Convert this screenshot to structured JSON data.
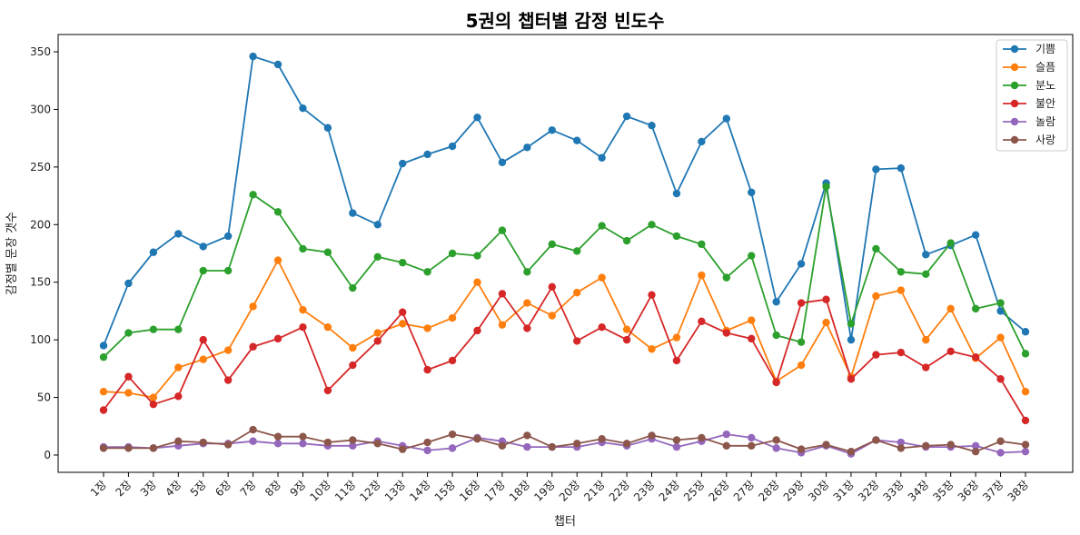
{
  "chart_data": {
    "type": "line",
    "title": "5권의 챕터별 감정 빈도수",
    "xlabel": "챕터",
    "ylabel": "감정별 문장 갯수",
    "ylim": [
      -15,
      365
    ],
    "yticks": [
      0,
      50,
      100,
      150,
      200,
      250,
      300,
      350
    ],
    "grid": false,
    "legend_position": "top-right",
    "categories": [
      "1장",
      "2장",
      "3장",
      "4장",
      "5장",
      "6장",
      "7장",
      "8장",
      "9장",
      "10장",
      "11장",
      "12장",
      "13장",
      "14장",
      "15장",
      "16장",
      "17장",
      "18장",
      "19장",
      "20장",
      "21장",
      "22장",
      "23장",
      "24장",
      "25장",
      "26장",
      "27장",
      "28장",
      "29장",
      "30장",
      "31장",
      "32장",
      "33장",
      "34장",
      "35장",
      "36장",
      "37장",
      "38장"
    ],
    "series": [
      {
        "name": "기쁨",
        "color": "#1f77b4",
        "values": [
          95,
          149,
          176,
          192,
          181,
          190,
          346,
          339,
          301,
          284,
          210,
          200,
          253,
          261,
          268,
          293,
          254,
          267,
          282,
          273,
          258,
          294,
          286,
          227,
          272,
          292,
          228,
          133,
          166,
          236,
          100,
          248,
          249,
          174,
          182,
          191,
          125,
          107
        ]
      },
      {
        "name": "슬픔",
        "color": "#ff7f0e",
        "values": [
          55,
          54,
          50,
          76,
          83,
          91,
          129,
          169,
          126,
          111,
          93,
          106,
          114,
          110,
          119,
          150,
          113,
          132,
          121,
          141,
          154,
          109,
          92,
          102,
          156,
          108,
          117,
          64,
          78,
          115,
          68,
          138,
          143,
          100,
          127,
          84,
          102,
          55
        ]
      },
      {
        "name": "분노",
        "color": "#2ca02c",
        "values": [
          85,
          106,
          109,
          109,
          160,
          160,
          226,
          211,
          179,
          176,
          145,
          172,
          167,
          159,
          175,
          173,
          195,
          159,
          183,
          177,
          199,
          186,
          200,
          190,
          183,
          154,
          173,
          104,
          98,
          233,
          114,
          179,
          159,
          157,
          184,
          127,
          132,
          88
        ]
      },
      {
        "name": "불안",
        "color": "#d62728",
        "values": [
          39,
          68,
          44,
          51,
          100,
          65,
          94,
          101,
          111,
          56,
          78,
          99,
          124,
          74,
          82,
          108,
          140,
          110,
          146,
          99,
          111,
          100,
          139,
          82,
          116,
          106,
          101,
          63,
          132,
          135,
          66,
          87,
          89,
          76,
          90,
          85,
          66,
          30
        ]
      },
      {
        "name": "놀람",
        "color": "#9467bd",
        "values": [
          7,
          7,
          6,
          8,
          10,
          10,
          12,
          10,
          10,
          8,
          8,
          12,
          8,
          4,
          6,
          15,
          12,
          7,
          7,
          7,
          11,
          8,
          14,
          7,
          12,
          18,
          15,
          6,
          2,
          8,
          1,
          13,
          11,
          7,
          7,
          8,
          2,
          3
        ]
      },
      {
        "name": "사랑",
        "color": "#8c564b",
        "values": [
          6,
          6,
          6,
          12,
          11,
          9,
          22,
          16,
          16,
          11,
          13,
          10,
          5,
          11,
          18,
          14,
          8,
          17,
          7,
          10,
          14,
          10,
          17,
          13,
          15,
          8,
          8,
          13,
          5,
          9,
          3,
          13,
          6,
          8,
          9,
          3,
          12,
          9
        ]
      }
    ]
  }
}
